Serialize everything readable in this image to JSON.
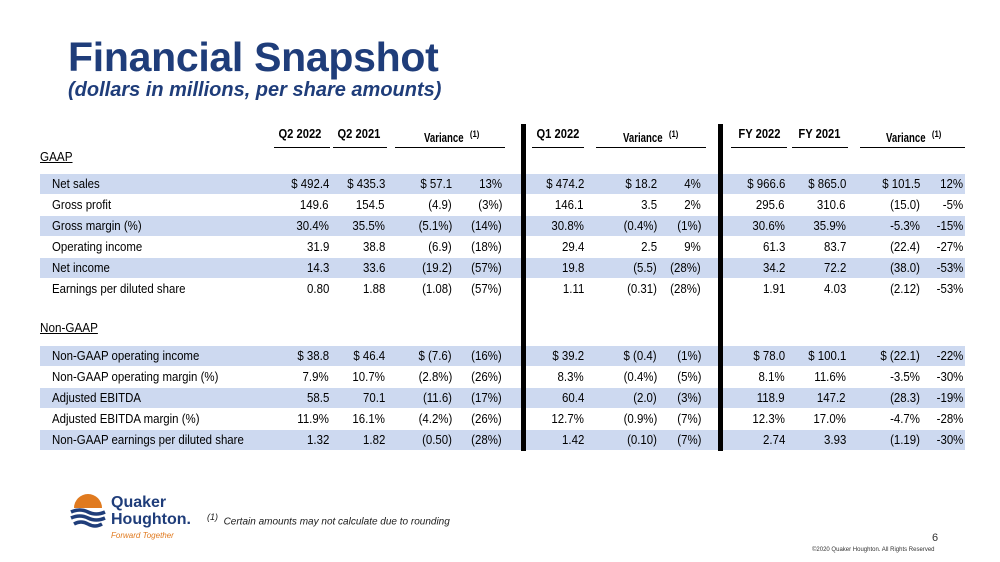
{
  "title": "Financial Snapshot",
  "subtitle": "(dollars in millions, per share amounts)",
  "headers": {
    "q2_2022": "Q2 2022",
    "q2_2021": "Q2 2021",
    "variance": "Variance",
    "footnote_mark": "(1)",
    "q1_2022": "Q1 2022",
    "fy_2022": "FY 2022",
    "fy_2021": "FY 2021"
  },
  "sections": {
    "gaap": "GAAP",
    "non_gaap": "Non-GAAP"
  },
  "gaap_rows": [
    {
      "label": "Net sales",
      "q2_22": "$ 492.4",
      "q2_21": "$ 435.3",
      "var_amt": "$ 57.1",
      "var_pct": "13%",
      "q1_22": "$ 474.2",
      "q1_var_amt": "$ 18.2",
      "q1_var_pct": "4%",
      "fy_22": "$ 966.6",
      "fy_21": "$ 865.0",
      "fy_var_amt": "$ 101.5",
      "fy_var_pct": "12%"
    },
    {
      "label": "Gross profit",
      "q2_22": "149.6",
      "q2_21": "154.5",
      "var_amt": "(4.9)",
      "var_pct": "(3%)",
      "q1_22": "146.1",
      "q1_var_amt": "3.5",
      "q1_var_pct": "2%",
      "fy_22": "295.6",
      "fy_21": "310.6",
      "fy_var_amt": "(15.0)",
      "fy_var_pct": "-5%"
    },
    {
      "label": "Gross margin (%)",
      "q2_22": "30.4%",
      "q2_21": "35.5%",
      "var_amt": "(5.1%)",
      "var_pct": "(14%)",
      "q1_22": "30.8%",
      "q1_var_amt": "(0.4%)",
      "q1_var_pct": "(1%)",
      "fy_22": "30.6%",
      "fy_21": "35.9%",
      "fy_var_amt": "-5.3%",
      "fy_var_pct": "-15%"
    },
    {
      "label": "Operating income",
      "q2_22": "31.9",
      "q2_21": "38.8",
      "var_amt": "(6.9)",
      "var_pct": "(18%)",
      "q1_22": "29.4",
      "q1_var_amt": "2.5",
      "q1_var_pct": "9%",
      "fy_22": "61.3",
      "fy_21": "83.7",
      "fy_var_amt": "(22.4)",
      "fy_var_pct": "-27%"
    },
    {
      "label": "Net income",
      "q2_22": "14.3",
      "q2_21": "33.6",
      "var_amt": "(19.2)",
      "var_pct": "(57%)",
      "q1_22": "19.8",
      "q1_var_amt": "(5.5)",
      "q1_var_pct": "(28%)",
      "fy_22": "34.2",
      "fy_21": "72.2",
      "fy_var_amt": "(38.0)",
      "fy_var_pct": "-53%"
    },
    {
      "label": "Earnings per diluted share",
      "q2_22": "0.80",
      "q2_21": "1.88",
      "var_amt": "(1.08)",
      "var_pct": "(57%)",
      "q1_22": "1.11",
      "q1_var_amt": "(0.31)",
      "q1_var_pct": "(28%)",
      "fy_22": "1.91",
      "fy_21": "4.03",
      "fy_var_amt": "(2.12)",
      "fy_var_pct": "-53%"
    }
  ],
  "non_gaap_rows": [
    {
      "label": "Non-GAAP operating income",
      "q2_22": "$ 38.8",
      "q2_21": "$ 46.4",
      "var_amt": "$ (7.6)",
      "var_pct": "(16%)",
      "q1_22": "$ 39.2",
      "q1_var_amt": "$ (0.4)",
      "q1_var_pct": "(1%)",
      "fy_22": "$ 78.0",
      "fy_21": "$ 100.1",
      "fy_var_amt": "$ (22.1)",
      "fy_var_pct": "-22%"
    },
    {
      "label": "Non-GAAP operating margin (%)",
      "q2_22": "7.9%",
      "q2_21": "10.7%",
      "var_amt": "(2.8%)",
      "var_pct": "(26%)",
      "q1_22": "8.3%",
      "q1_var_amt": "(0.4%)",
      "q1_var_pct": "(5%)",
      "fy_22": "8.1%",
      "fy_21": "11.6%",
      "fy_var_amt": "-3.5%",
      "fy_var_pct": "-30%"
    },
    {
      "label": "Adjusted EBITDA",
      "q2_22": "58.5",
      "q2_21": "70.1",
      "var_amt": "(11.6)",
      "var_pct": "(17%)",
      "q1_22": "60.4",
      "q1_var_amt": "(2.0)",
      "q1_var_pct": "(3%)",
      "fy_22": "118.9",
      "fy_21": "147.2",
      "fy_var_amt": "(28.3)",
      "fy_var_pct": "-19%"
    },
    {
      "label": "Adjusted EBITDA margin (%)",
      "q2_22": "11.9%",
      "q2_21": "16.1%",
      "var_amt": "(4.2%)",
      "var_pct": "(26%)",
      "q1_22": "12.7%",
      "q1_var_amt": "(0.9%)",
      "q1_var_pct": "(7%)",
      "fy_22": "12.3%",
      "fy_21": "17.0%",
      "fy_var_amt": "-4.7%",
      "fy_var_pct": "-28%"
    },
    {
      "label": "Non-GAAP earnings per diluted share",
      "q2_22": "1.32",
      "q2_21": "1.82",
      "var_amt": "(0.50)",
      "var_pct": "(28%)",
      "q1_22": "1.42",
      "q1_var_amt": "(0.10)",
      "q1_var_pct": "(7%)",
      "fy_22": "2.74",
      "fy_21": "3.93",
      "fy_var_amt": "(1.19)",
      "fy_var_pct": "-30%"
    }
  ],
  "footnote": {
    "mark": "(1)",
    "text": "Certain amounts may not calculate due to rounding"
  },
  "page_number": "6",
  "copyright": "©2020 Quaker Houghton. All Rights Reserved",
  "logo": {
    "line1": "Quaker",
    "line2": "Houghton.",
    "tagline": "Forward Together",
    "colors": {
      "navy": "#1f3d7a",
      "orange": "#e07a1f"
    }
  },
  "colors": {
    "title": "#1f3d7a",
    "row_shade": "#cdd9f0"
  }
}
